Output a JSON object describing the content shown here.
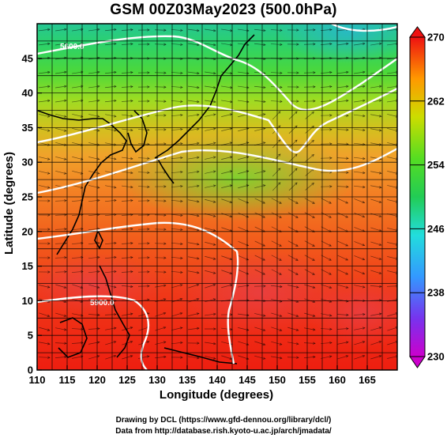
{
  "figure": {
    "title": "GSM 00Z03May2023 (500.0hPa)",
    "xlabel": "Longitude (degrees)",
    "ylabel": "Latitude  (degrees)",
    "credit_drawing": "Drawing by DCL (https://www.gfd-dennou.org/library/dcl/)",
    "credit_data": "Data from http://database.rish.kyoto-u.ac.jp/arch/jmadata/"
  },
  "map": {
    "lon_range": [
      110,
      170
    ],
    "lat_range": [
      0,
      50
    ],
    "lon_ticks": [
      110,
      115,
      120,
      125,
      130,
      135,
      140,
      145,
      150,
      155,
      160,
      165
    ],
    "lat_ticks": [
      0,
      5,
      10,
      15,
      20,
      25,
      30,
      35,
      40,
      45
    ],
    "grid_step_deg": 2.5,
    "shaded_field": "temperature (K)",
    "contour_labels": [
      "5600.0",
      "5900.0"
    ]
  },
  "colorbar": {
    "min": 230,
    "max": 270,
    "tick_labels": [
      270,
      262,
      254,
      246,
      238,
      230
    ],
    "stops": [
      "#cc00cc",
      "#7733ee",
      "#3399ff",
      "#22dddd",
      "#22cc55",
      "#33dd22",
      "#ccdd00",
      "#ffaa00",
      "#ff5500",
      "#ee1111"
    ]
  },
  "chart_data": {
    "type": "heatmap",
    "title": "GSM 00Z03May2023 (500.0hPa)",
    "xlabel": "Longitude (degrees)",
    "ylabel": "Latitude  (degrees)",
    "xlim": [
      110,
      170
    ],
    "ylim": [
      0,
      50
    ],
    "colorbar_range": [
      230,
      270
    ],
    "temperature_profile": {
      "lat": [
        0,
        5,
        10,
        15,
        20,
        25,
        30,
        35,
        40,
        45,
        50
      ],
      "approx_value": [
        268,
        268,
        267,
        267,
        266,
        264,
        262,
        260,
        257,
        255,
        252
      ]
    }
  }
}
